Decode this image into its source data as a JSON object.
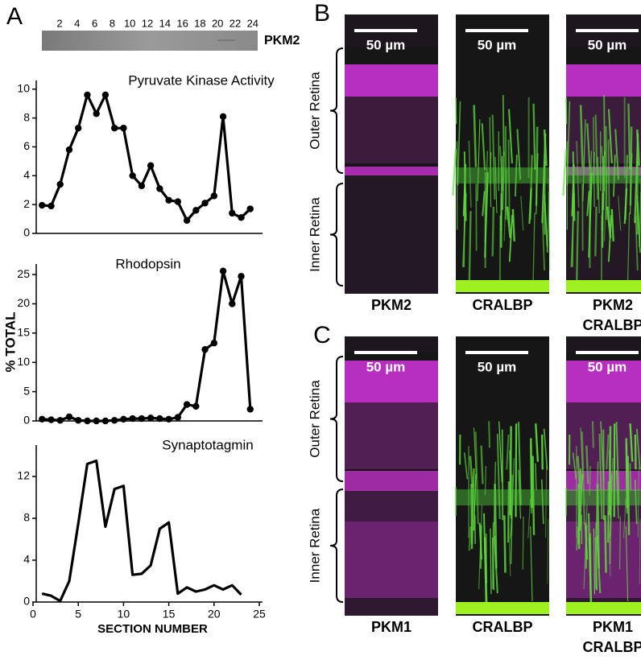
{
  "figure": {
    "panel_labels": [
      "A",
      "B",
      "C"
    ],
    "y_label": "% TOTAL",
    "blot": {
      "label": "PKM2",
      "lanes": [
        "2",
        "4",
        "6",
        "8",
        "10",
        "12",
        "14",
        "16",
        "18",
        "20",
        "22",
        "24"
      ]
    },
    "scale_bar": "50 µm",
    "regions": [
      "Outer Retina",
      "Inner Retina"
    ],
    "panels": [
      {
        "channels": [
          [
            {
              "text": "PKM2",
              "color": "#9b2a9b"
            }
          ],
          [
            {
              "text": "CRALBP",
              "color": "#4f9a3c"
            }
          ],
          [
            {
              "text": "PKM2",
              "color": "#9b2a9b"
            },
            {
              "text": "CRALBP",
              "color": "#4f9a3c"
            }
          ]
        ]
      },
      {
        "channels": [
          [
            {
              "text": "PKM1",
              "color": "#9b2a9b"
            }
          ],
          [
            {
              "text": "CRALBP",
              "color": "#4f9a3c"
            }
          ],
          [
            {
              "text": "PKM1",
              "color": "#9b2a9b"
            },
            {
              "text": "CRALBP",
              "color": "#4f9a3c"
            }
          ]
        ]
      }
    ]
  },
  "chart_data": [
    {
      "type": "line",
      "title": "Pyruvate Kinase Activity",
      "color": "#000000",
      "markers": true,
      "x": [
        1,
        2,
        3,
        4,
        5,
        6,
        7,
        8,
        9,
        10,
        11,
        12,
        13,
        14,
        15,
        16,
        17,
        18,
        19,
        20,
        21,
        22,
        23,
        24
      ],
      "values": [
        1.95,
        1.9,
        3.4,
        5.8,
        7.3,
        9.6,
        8.3,
        9.6,
        7.3,
        7.3,
        4.0,
        3.3,
        4.7,
        3.1,
        2.3,
        2.2,
        0.9,
        1.6,
        2.1,
        2.6,
        8.1,
        1.4,
        1.1,
        1.7
      ],
      "xlim": [
        0,
        25
      ],
      "ylim": [
        0,
        10.6
      ],
      "yticks": [
        0,
        2,
        4,
        6,
        8,
        10
      ]
    },
    {
      "type": "line",
      "title": "Rhodopsin",
      "color": "#000000",
      "markers": true,
      "x": [
        1,
        2,
        3,
        4,
        5,
        6,
        7,
        8,
        9,
        10,
        11,
        12,
        13,
        14,
        15,
        16,
        17,
        18,
        19,
        20,
        21,
        22,
        23,
        24
      ],
      "values": [
        0.3,
        0.2,
        0.1,
        0.7,
        0.1,
        0,
        0,
        0,
        0.1,
        0.3,
        0.4,
        0.4,
        0.5,
        0.4,
        0.3,
        0.6,
        2.8,
        2.5,
        12.2,
        13.3,
        25.6,
        20,
        24.7,
        2
      ],
      "xlim": [
        0,
        25
      ],
      "ylim": [
        0,
        26.8
      ],
      "yticks": [
        0,
        5,
        10,
        15,
        20,
        25
      ]
    },
    {
      "type": "line",
      "title": "Synaptotagmin",
      "color": "#000000",
      "markers": false,
      "x": [
        1,
        2,
        3,
        4,
        5,
        6,
        7,
        8,
        9,
        10,
        11,
        12,
        13,
        14,
        15,
        16,
        17,
        18,
        19,
        20,
        21,
        22,
        23
      ],
      "values": [
        0.8,
        0.6,
        0.1,
        2,
        7.5,
        13.2,
        13.5,
        7.2,
        10.8,
        11.1,
        2.6,
        2.7,
        3.5,
        7,
        7.6,
        0.8,
        1.4,
        1,
        1.2,
        1.6,
        1.2,
        1.6,
        0.7
      ],
      "xlim": [
        0,
        25
      ],
      "ylim": [
        0,
        15
      ],
      "yticks": [
        0,
        4,
        8,
        12
      ],
      "xticks": [
        0,
        5,
        10,
        15,
        20,
        25
      ],
      "xlabel": "SECTION NUMBER"
    }
  ]
}
